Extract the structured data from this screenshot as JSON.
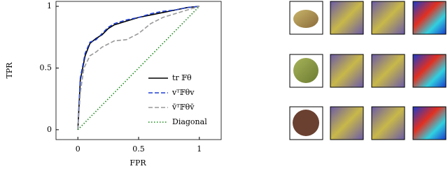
{
  "chart_data": {
    "type": "line",
    "x_label": "FPR",
    "y_label": "TPR",
    "xlim": [
      -0.18,
      1.18
    ],
    "ylim": [
      -0.08,
      1.04
    ],
    "xticks": [
      0,
      0.5,
      1
    ],
    "yticks": [
      0,
      0.5,
      1
    ],
    "legend": "lower right",
    "series": [
      {
        "name": "tr 𝔽θ",
        "color": "#000000",
        "dash": "solid",
        "x": [
          0,
          0.01,
          0.02,
          0.04,
          0.06,
          0.1,
          0.15,
          0.2,
          0.25,
          0.3,
          0.4,
          0.5,
          0.6,
          0.7,
          0.8,
          0.9,
          1
        ],
        "values": [
          0,
          0.2,
          0.4,
          0.5,
          0.6,
          0.7,
          0.74,
          0.77,
          0.82,
          0.85,
          0.88,
          0.91,
          0.93,
          0.95,
          0.97,
          0.99,
          1
        ]
      },
      {
        "name": "vᵀ𝔽θv",
        "color": "#1f3fd6",
        "dash": "dashed",
        "x": [
          0,
          0.01,
          0.02,
          0.04,
          0.06,
          0.1,
          0.15,
          0.2,
          0.25,
          0.3,
          0.4,
          0.5,
          0.6,
          0.7,
          0.8,
          0.9,
          1
        ],
        "values": [
          0,
          0.22,
          0.42,
          0.52,
          0.62,
          0.71,
          0.73,
          0.78,
          0.83,
          0.86,
          0.89,
          0.91,
          0.94,
          0.96,
          0.97,
          0.99,
          1
        ]
      },
      {
        "name": "v̄ᵀ𝔽θv̄",
        "color": "#999999",
        "dash": "dashed",
        "x": [
          0,
          0.02,
          0.05,
          0.1,
          0.15,
          0.2,
          0.3,
          0.4,
          0.5,
          0.6,
          0.7,
          0.8,
          0.9,
          1
        ],
        "values": [
          0,
          0.3,
          0.5,
          0.6,
          0.63,
          0.67,
          0.72,
          0.73,
          0.78,
          0.86,
          0.91,
          0.94,
          0.97,
          1
        ]
      },
      {
        "name": "Diagonal",
        "color": "#1a8a1a",
        "dash": "dotted",
        "x": [
          0,
          1
        ],
        "values": [
          0,
          1
        ]
      }
    ]
  }
}
